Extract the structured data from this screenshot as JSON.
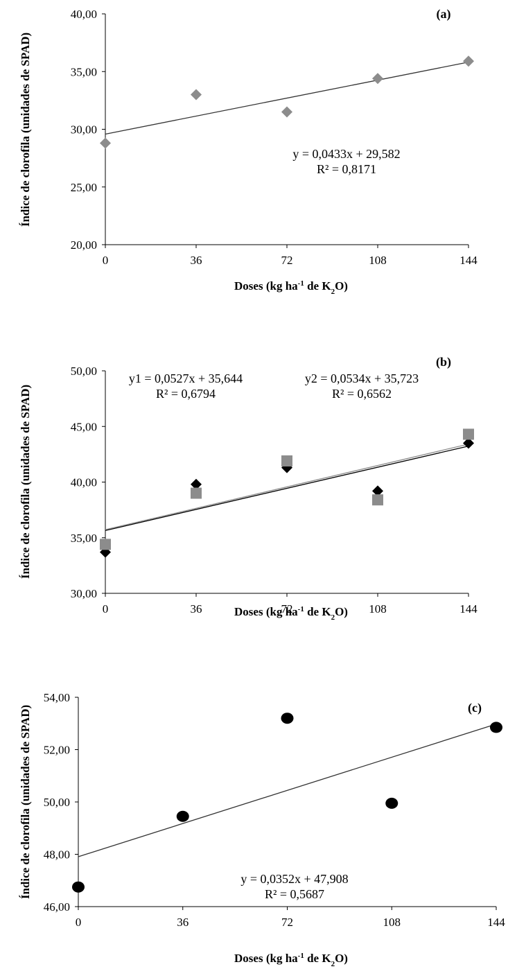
{
  "chart_data": [
    {
      "type": "scatter",
      "panel_label": "(a)",
      "xlabel_parts": [
        "Doses (kg ha",
        "-1",
        " de K",
        "2",
        "O)"
      ],
      "ylabel": "Índice de clorofila (unidades de SPAD)",
      "x_ticks": [
        0,
        36,
        72,
        108,
        144
      ],
      "y_ticks": [
        "20,00",
        "25,00",
        "30,00",
        "35,00",
        "40,00"
      ],
      "ylim": [
        20,
        40
      ],
      "xlim": [
        0,
        144
      ],
      "grid": false,
      "series": [
        {
          "marker": "diamond",
          "color": "#8c8c8c",
          "x": [
            0,
            36,
            72,
            108,
            144
          ],
          "y": [
            28.8,
            33.0,
            31.5,
            34.4,
            35.9
          ],
          "trendline": {
            "slope": 0.0433,
            "intercept": 29.582,
            "color": "#333333"
          }
        }
      ],
      "equations": [
        {
          "line1": "y = 0,0433x + 29,582",
          "line2": "R² = 0,8171"
        }
      ]
    },
    {
      "type": "scatter",
      "panel_label": "(b)",
      "xlabel_parts": [
        "Doses (kg ha",
        "-1",
        " de K",
        "2",
        "O)"
      ],
      "ylabel": "Índice de clorofila (unidades de SPAD)",
      "x_ticks": [
        0,
        36,
        72,
        108,
        144
      ],
      "y_ticks": [
        "30,00",
        "35,00",
        "40,00",
        "45,00",
        "50,00"
      ],
      "ylim": [
        30,
        50
      ],
      "xlim": [
        0,
        144
      ],
      "grid": false,
      "series": [
        {
          "marker": "diamond",
          "color": "#000000",
          "x": [
            0,
            36,
            72,
            108,
            144
          ],
          "y": [
            33.7,
            39.8,
            41.3,
            39.2,
            43.5
          ],
          "trendline": {
            "slope": 0.0527,
            "intercept": 35.644,
            "color": "#000000"
          }
        },
        {
          "marker": "square",
          "color": "#8c8c8c",
          "x": [
            0,
            36,
            72,
            108,
            144
          ],
          "y": [
            34.4,
            39.0,
            41.9,
            38.4,
            44.3
          ],
          "trendline": {
            "slope": 0.0534,
            "intercept": 35.723,
            "color": "#8c8c8c"
          }
        }
      ],
      "equations": [
        {
          "line1": "y1 = 0,0527x + 35,644",
          "line2": "R² = 0,6794"
        },
        {
          "line1": "y2 = 0,0534x + 35,723",
          "line2": "R² = 0,6562"
        }
      ]
    },
    {
      "type": "scatter",
      "panel_label": "(c)",
      "xlabel_parts": [
        "Doses (kg ha",
        "-1",
        " de K",
        "2",
        "O)"
      ],
      "ylabel": "Índice de clorofila (unidades de SPAD)",
      "x_ticks": [
        0,
        36,
        72,
        108,
        144
      ],
      "y_ticks": [
        "46,00",
        "48,00",
        "50,00",
        "52,00",
        "54,00"
      ],
      "ylim": [
        46,
        54
      ],
      "xlim": [
        0,
        144
      ],
      "grid": false,
      "series": [
        {
          "marker": "circle",
          "color": "#000000",
          "x": [
            0,
            36,
            72,
            108,
            144
          ],
          "y": [
            46.75,
            49.45,
            53.2,
            49.95,
            52.85
          ],
          "trendline": {
            "slope": 0.0352,
            "intercept": 47.908,
            "color": "#333333"
          }
        }
      ],
      "equations": [
        {
          "line1": "y = 0,0352x + 47,908",
          "line2": "R² = 0,5687"
        }
      ]
    }
  ]
}
